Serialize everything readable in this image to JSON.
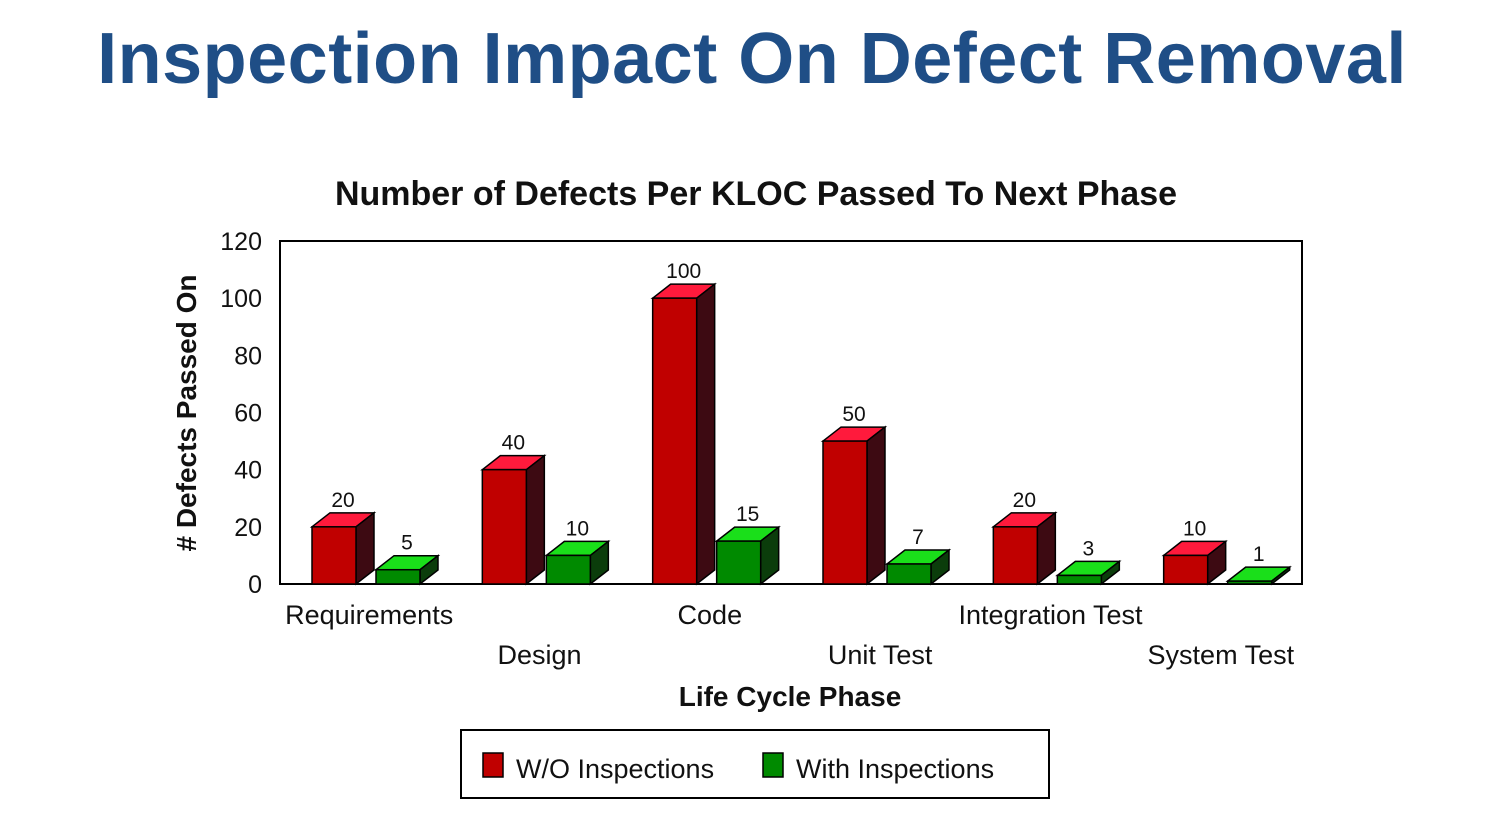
{
  "slide": {
    "title": "Inspection Impact On Defect Removal"
  },
  "chart_data": {
    "type": "bar",
    "title": "Number of Defects Per KLOC Passed To Next Phase",
    "xlabel": "Life Cycle Phase",
    "ylabel": "# Defects Passed On",
    "ylim": [
      0,
      120
    ],
    "yticks": [
      0,
      20,
      40,
      60,
      80,
      100,
      120
    ],
    "categories": [
      "Requirements",
      "Design",
      "Code",
      "Unit Test",
      "Integration Test",
      "System Test"
    ],
    "series": [
      {
        "name": "W/O Inspections",
        "values": [
          20,
          40,
          100,
          50,
          20,
          10
        ],
        "color": "#c00000",
        "top": "#ff1a3c",
        "side": "#3d0a12"
      },
      {
        "name": "With Inspections",
        "values": [
          5,
          10,
          15,
          7,
          3,
          1
        ],
        "color": "#008a00",
        "top": "#1adf1a",
        "side": "#0b3d0b"
      }
    ],
    "grid": false,
    "legend": "bottom",
    "data_labels": true,
    "style": "3d"
  }
}
